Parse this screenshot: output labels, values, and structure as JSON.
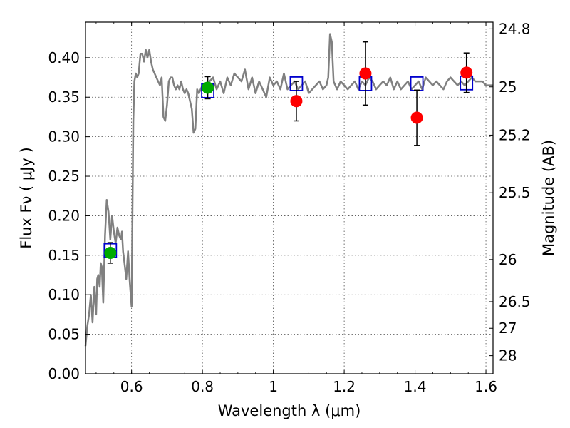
{
  "chart_data": {
    "type": "scatter",
    "xlabel": "Wavelength  λ (μm)",
    "ylabel": "Flux  Fν  ( μJy )",
    "ylabel2": "Magnitude (AB)",
    "xlim": [
      0.47,
      1.62
    ],
    "ylim": [
      0.0,
      0.445
    ],
    "x_ticks": [
      0.6,
      0.8,
      1.0,
      1.2,
      1.4,
      1.6
    ],
    "x_tick_labels": [
      "0.6",
      "0.8",
      "1",
      "1.2",
      "1.4",
      "1.6"
    ],
    "y_ticks": [
      0.0,
      0.05,
      0.1,
      0.15,
      0.2,
      0.25,
      0.3,
      0.35,
      0.4
    ],
    "y_tick_labels": [
      "0.00",
      "0.05",
      "0.10",
      "0.15",
      "0.20",
      "0.25",
      "0.30",
      "0.35",
      "0.40"
    ],
    "mag_ticks": [
      24.8,
      25,
      25.2,
      25.5,
      26,
      26.5,
      27,
      28
    ],
    "mag_tick_labels": [
      "24.8",
      "25",
      "25.2",
      "25.5",
      "26",
      "26.5",
      "27",
      "28"
    ],
    "grid": true,
    "colors": {
      "model": "#808080",
      "model_points": "#0000cc",
      "green_points": "#00aa00",
      "red_points": "#ff0000",
      "errorbar": "#000000"
    },
    "series": [
      {
        "name": "model spectrum",
        "kind": "line",
        "x": [
          0.47,
          0.475,
          0.48,
          0.485,
          0.49,
          0.495,
          0.5,
          0.503,
          0.506,
          0.51,
          0.513,
          0.516,
          0.52,
          0.525,
          0.53,
          0.535,
          0.54,
          0.545,
          0.55,
          0.555,
          0.56,
          0.565,
          0.57,
          0.573,
          0.576,
          0.58,
          0.585,
          0.59,
          0.595,
          0.6,
          0.605,
          0.608,
          0.612,
          0.616,
          0.62,
          0.625,
          0.63,
          0.635,
          0.64,
          0.645,
          0.65,
          0.655,
          0.66,
          0.665,
          0.67,
          0.675,
          0.68,
          0.685,
          0.69,
          0.695,
          0.7,
          0.705,
          0.71,
          0.715,
          0.72,
          0.725,
          0.73,
          0.735,
          0.74,
          0.745,
          0.75,
          0.755,
          0.76,
          0.765,
          0.77,
          0.775,
          0.78,
          0.785,
          0.79,
          0.8,
          0.81,
          0.82,
          0.83,
          0.84,
          0.85,
          0.86,
          0.87,
          0.88,
          0.89,
          0.9,
          0.91,
          0.92,
          0.93,
          0.94,
          0.95,
          0.96,
          0.97,
          0.98,
          0.99,
          1.0,
          1.01,
          1.02,
          1.03,
          1.04,
          1.05,
          1.06,
          1.07,
          1.08,
          1.09,
          1.1,
          1.11,
          1.12,
          1.13,
          1.14,
          1.15,
          1.155,
          1.16,
          1.165,
          1.17,
          1.18,
          1.19,
          1.2,
          1.21,
          1.22,
          1.23,
          1.24,
          1.25,
          1.26,
          1.27,
          1.28,
          1.29,
          1.3,
          1.31,
          1.32,
          1.33,
          1.34,
          1.35,
          1.36,
          1.37,
          1.38,
          1.39,
          1.4,
          1.41,
          1.42,
          1.43,
          1.44,
          1.45,
          1.46,
          1.47,
          1.48,
          1.49,
          1.5,
          1.51,
          1.52,
          1.53,
          1.54,
          1.55,
          1.56,
          1.57,
          1.58,
          1.59,
          1.6,
          1.61,
          1.62
        ],
        "y": [
          0.035,
          0.06,
          0.075,
          0.1,
          0.065,
          0.11,
          0.075,
          0.12,
          0.125,
          0.11,
          0.14,
          0.135,
          0.09,
          0.175,
          0.22,
          0.205,
          0.17,
          0.2,
          0.18,
          0.165,
          0.185,
          0.175,
          0.17,
          0.18,
          0.155,
          0.14,
          0.12,
          0.155,
          0.115,
          0.085,
          0.32,
          0.37,
          0.38,
          0.375,
          0.38,
          0.405,
          0.405,
          0.395,
          0.41,
          0.4,
          0.41,
          0.395,
          0.385,
          0.38,
          0.375,
          0.37,
          0.365,
          0.375,
          0.325,
          0.32,
          0.34,
          0.37,
          0.375,
          0.375,
          0.365,
          0.36,
          0.365,
          0.36,
          0.37,
          0.36,
          0.355,
          0.36,
          0.355,
          0.345,
          0.335,
          0.305,
          0.31,
          0.36,
          0.355,
          0.365,
          0.36,
          0.37,
          0.375,
          0.36,
          0.37,
          0.355,
          0.375,
          0.365,
          0.38,
          0.375,
          0.37,
          0.385,
          0.36,
          0.375,
          0.355,
          0.37,
          0.36,
          0.35,
          0.375,
          0.365,
          0.37,
          0.36,
          0.38,
          0.36,
          0.365,
          0.37,
          0.36,
          0.365,
          0.37,
          0.355,
          0.36,
          0.365,
          0.37,
          0.36,
          0.365,
          0.375,
          0.43,
          0.42,
          0.37,
          0.36,
          0.37,
          0.365,
          0.36,
          0.365,
          0.37,
          0.36,
          0.37,
          0.365,
          0.375,
          0.37,
          0.36,
          0.365,
          0.37,
          0.365,
          0.375,
          0.36,
          0.37,
          0.36,
          0.365,
          0.37,
          0.36,
          0.365,
          0.37,
          0.36,
          0.375,
          0.37,
          0.365,
          0.37,
          0.365,
          0.36,
          0.37,
          0.375,
          0.37,
          0.365,
          0.37,
          0.365,
          0.37,
          0.375,
          0.37,
          0.37,
          0.37,
          0.365,
          0.365,
          0.365
        ]
      },
      {
        "name": "model photometry",
        "kind": "open-square",
        "x": [
          0.54,
          0.815,
          1.065,
          1.26,
          1.405,
          1.545
        ],
        "y": [
          0.156,
          0.358,
          0.367,
          0.367,
          0.367,
          0.368
        ]
      },
      {
        "name": "observed (green)",
        "kind": "filled-circle",
        "x": [
          0.54,
          0.815
        ],
        "y": [
          0.153,
          0.362
        ],
        "yerr": [
          0.013,
          0.014
        ]
      },
      {
        "name": "observed (red)",
        "kind": "filled-circle",
        "x": [
          1.065,
          1.26,
          1.405,
          1.545
        ],
        "y": [
          0.345,
          0.38,
          0.324,
          0.381
        ],
        "yerr": [
          0.025,
          0.04,
          0.035,
          0.025
        ]
      }
    ]
  }
}
